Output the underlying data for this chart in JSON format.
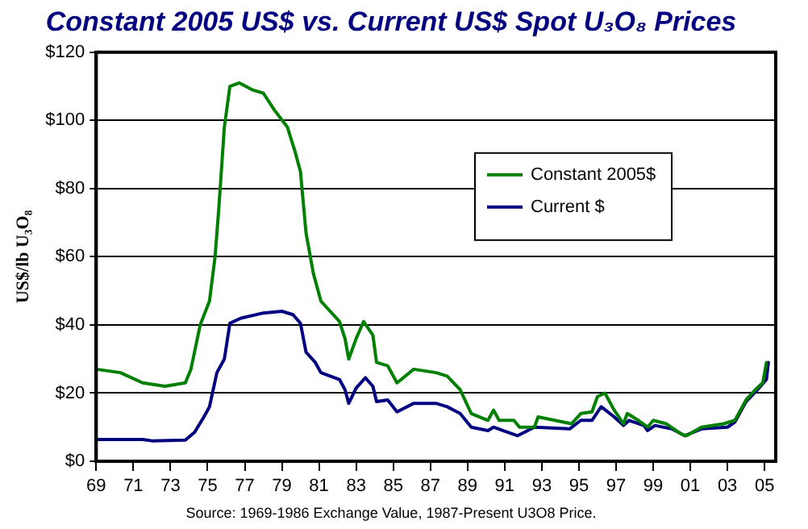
{
  "chart_data": {
    "type": "line",
    "title": "Constant 2005 US$ vs. Current US$ Spot U₃O₈ Prices",
    "ylabel": "US$/lb U₃O₈",
    "annotations": [
      "Source: 1969-1986 Exchange Value, 1987-Present U3O8 Price."
    ],
    "xlim": [
      1969,
      2005.6
    ],
    "xticks": [
      {
        "value": 1969,
        "label": "69"
      },
      {
        "value": 1971,
        "label": "71"
      },
      {
        "value": 1973,
        "label": "73"
      },
      {
        "value": 1975,
        "label": "75"
      },
      {
        "value": 1977,
        "label": "77"
      },
      {
        "value": 1979,
        "label": "79"
      },
      {
        "value": 1981,
        "label": "81"
      },
      {
        "value": 1983,
        "label": "83"
      },
      {
        "value": 1985,
        "label": "85"
      },
      {
        "value": 1987,
        "label": "87"
      },
      {
        "value": 1989,
        "label": "89"
      },
      {
        "value": 1991,
        "label": "91"
      },
      {
        "value": 1993,
        "label": "93"
      },
      {
        "value": 1995,
        "label": "95"
      },
      {
        "value": 1997,
        "label": "97"
      },
      {
        "value": 1999,
        "label": "99"
      },
      {
        "value": 2001,
        "label": "01"
      },
      {
        "value": 2003,
        "label": "03"
      },
      {
        "value": 2005,
        "label": "05"
      }
    ],
    "ylim": [
      0,
      120
    ],
    "yticks": [
      {
        "value": 0,
        "label": "$0"
      },
      {
        "value": 20,
        "label": "$20"
      },
      {
        "value": 40,
        "label": "$40"
      },
      {
        "value": 60,
        "label": "$60"
      },
      {
        "value": 80,
        "label": "$80"
      },
      {
        "value": 100,
        "label": "$100"
      },
      {
        "value": 120,
        "label": "$120"
      }
    ],
    "grid": "y",
    "legend": "top right",
    "marker": "none",
    "line_style": "solid",
    "series": [
      {
        "name": "Constant 2005$",
        "color": "#008000",
        "x": [
          1969,
          1970.3,
          1971.5,
          1972.7,
          1973.8,
          1974.1,
          1974.6,
          1975.1,
          1975.4,
          1975.6,
          1975.9,
          1976.2,
          1976.7,
          1977.4,
          1978,
          1978.6,
          1979.3,
          1979.7,
          1980,
          1980.3,
          1980.7,
          1981.1,
          1981.6,
          1982.1,
          1982.4,
          1982.6,
          1983,
          1983.4,
          1983.9,
          1984.1,
          1984.7,
          1985.2,
          1986.1,
          1987.3,
          1987.9,
          1988.6,
          1989.2,
          1990.1,
          1990.4,
          1990.7,
          1991.5,
          1991.8,
          1992.6,
          1992.8,
          1993.7,
          1994.6,
          1995.1,
          1995.7,
          1996,
          1996.4,
          1996.9,
          1997.4,
          1997.6,
          1998.2,
          1998.7,
          1999,
          1999.7,
          2000.5,
          2000.8,
          2001.6,
          2002.8,
          2003.4,
          2004,
          2004.5,
          2004.9,
          2005.1
        ],
        "values": [
          27,
          26,
          23,
          22,
          23,
          27,
          40,
          47,
          60,
          74,
          98,
          110,
          111,
          109,
          108,
          103,
          98,
          91,
          85,
          67,
          55,
          47,
          44,
          41,
          36,
          30,
          36,
          41,
          37,
          29,
          28,
          23,
          27,
          26,
          25,
          21,
          14,
          12,
          15,
          12,
          12,
          10,
          10,
          13,
          12,
          11,
          14,
          14.5,
          19,
          20,
          15,
          11,
          14,
          12,
          10,
          12,
          11,
          8,
          7.5,
          10,
          11,
          12,
          18,
          21,
          23,
          29
        ]
      },
      {
        "name": "Current $",
        "color": "#000080",
        "x": [
          1969,
          1971.5,
          1972,
          1973.8,
          1974.3,
          1974.8,
          1975.1,
          1975.5,
          1975.9,
          1976.2,
          1976.8,
          1978,
          1979,
          1979.6,
          1980,
          1980.3,
          1980.8,
          1981.1,
          1981.6,
          1982.1,
          1982.4,
          1982.6,
          1983,
          1983.5,
          1983.9,
          1984.1,
          1984.7,
          1985.2,
          1986.1,
          1987.3,
          1987.9,
          1988.6,
          1989.2,
          1990.1,
          1990.4,
          1990.9,
          1991.7,
          1992.6,
          1994.5,
          1995.1,
          1995.7,
          1996.2,
          1996.9,
          1997.4,
          1997.7,
          1998.5,
          1998.7,
          1999.1,
          2000,
          2000.7,
          2001.6,
          2003,
          2003.4,
          2004,
          2004.7,
          2005.1,
          2005.2
        ],
        "values": [
          6.4,
          6.4,
          6,
          6.2,
          8.5,
          13,
          16,
          26,
          30,
          40.5,
          42,
          43.5,
          44,
          43,
          40.5,
          32,
          29,
          26,
          25,
          24,
          21,
          17,
          21.5,
          24.5,
          22,
          17.5,
          18,
          14.5,
          17,
          17,
          16,
          14,
          10,
          9,
          10,
          9,
          7.5,
          10,
          9.5,
          12,
          12,
          16,
          13,
          10.5,
          12,
          10.5,
          9,
          10.5,
          9.5,
          7.5,
          9.5,
          10,
          11.5,
          17.5,
          21.5,
          24,
          29
        ]
      }
    ]
  }
}
